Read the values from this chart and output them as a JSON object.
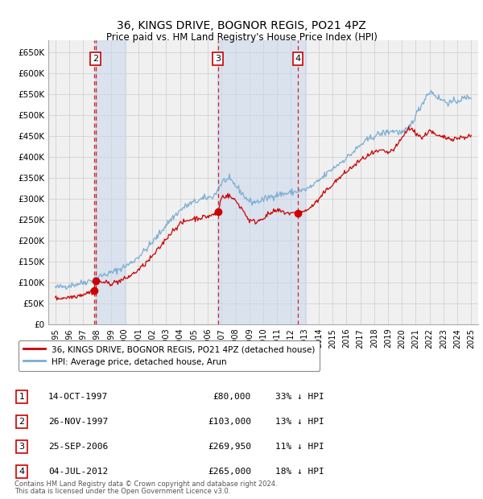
{
  "title": "36, KINGS DRIVE, BOGNOR REGIS, PO21 4PZ",
  "subtitle": "Price paid vs. HM Land Registry's House Price Index (HPI)",
  "legend_line1": "36, KINGS DRIVE, BOGNOR REGIS, PO21 4PZ (detached house)",
  "legend_line2": "HPI: Average price, detached house, Arun",
  "footer_line1": "Contains HM Land Registry data © Crown copyright and database right 2024.",
  "footer_line2": "This data is licensed under the Open Government Licence v3.0.",
  "sale_color": "#cc0000",
  "hpi_color": "#7aadd4",
  "transactions": [
    {
      "num": 1,
      "date": "14-OCT-1997",
      "price": 80000,
      "price_str": "£80,000",
      "pct": "33% ↓ HPI",
      "x_year": 1997.79
    },
    {
      "num": 2,
      "date": "26-NOV-1997",
      "price": 103000,
      "price_str": "£103,000",
      "pct": "13% ↓ HPI",
      "x_year": 1997.9
    },
    {
      "num": 3,
      "date": "25-SEP-2006",
      "price": 269950,
      "price_str": "£269,950",
      "pct": "11% ↓ HPI",
      "x_year": 2006.73
    },
    {
      "num": 4,
      "date": "04-JUL-2012",
      "price": 265000,
      "price_str": "£265,000",
      "pct": "18% ↓ HPI",
      "x_year": 2012.5
    }
  ],
  "label_boxes": [
    {
      "num": 2,
      "x_year": 1997.9
    },
    {
      "num": 3,
      "x_year": 2006.73
    },
    {
      "num": 4,
      "x_year": 2012.5
    }
  ],
  "ylim": [
    0,
    680000
  ],
  "xlim_start": 1994.5,
  "xlim_end": 2025.5,
  "yticks": [
    0,
    50000,
    100000,
    150000,
    200000,
    250000,
    300000,
    350000,
    400000,
    450000,
    500000,
    550000,
    600000,
    650000
  ],
  "ytick_labels": [
    "£0",
    "£50K",
    "£100K",
    "£150K",
    "£200K",
    "£250K",
    "£300K",
    "£350K",
    "£400K",
    "£450K",
    "£500K",
    "£550K",
    "£600K",
    "£650K"
  ],
  "xtick_years": [
    1995,
    1996,
    1997,
    1998,
    1999,
    2000,
    2001,
    2002,
    2003,
    2004,
    2005,
    2006,
    2007,
    2008,
    2009,
    2010,
    2011,
    2012,
    2013,
    2014,
    2015,
    2016,
    2017,
    2018,
    2019,
    2020,
    2021,
    2022,
    2023,
    2024,
    2025
  ],
  "background_color": "#f0f0f0",
  "grid_color": "#cccccc",
  "shade_color": "#c8d8ee",
  "shade_regions": [
    {
      "x_start": 1997.88,
      "x_end": 2000.1
    },
    {
      "x_start": 2006.7,
      "x_end": 2013.1
    }
  ],
  "hpi_data_x": [
    1995.0,
    1995.5,
    1996.0,
    1996.5,
    1997.0,
    1997.3,
    1997.6,
    1997.9,
    1998.2,
    1998.5,
    1999.0,
    1999.5,
    2000.0,
    2000.5,
    2001.0,
    2001.5,
    2002.0,
    2002.5,
    2003.0,
    2003.5,
    2004.0,
    2004.5,
    2005.0,
    2005.5,
    2006.0,
    2006.5,
    2007.0,
    2007.5,
    2008.0,
    2008.5,
    2009.0,
    2009.5,
    2010.0,
    2010.5,
    2011.0,
    2011.5,
    2012.0,
    2012.5,
    2013.0,
    2013.5,
    2014.0,
    2014.5,
    2015.0,
    2015.5,
    2016.0,
    2016.5,
    2017.0,
    2017.5,
    2018.0,
    2018.5,
    2019.0,
    2019.5,
    2020.0,
    2020.5,
    2021.0,
    2021.5,
    2022.0,
    2022.5,
    2023.0,
    2023.5,
    2024.0,
    2024.5,
    2025.0
  ],
  "hpi_data_y": [
    88000,
    90000,
    93000,
    96000,
    100000,
    103000,
    106000,
    110000,
    115000,
    118000,
    123000,
    130000,
    138000,
    148000,
    162000,
    178000,
    196000,
    216000,
    238000,
    256000,
    272000,
    284000,
    292000,
    298000,
    303000,
    310000,
    338000,
    345000,
    332000,
    312000,
    295000,
    293000,
    298000,
    305000,
    310000,
    312000,
    315000,
    318000,
    322000,
    330000,
    343000,
    358000,
    372000,
    385000,
    398000,
    412000,
    428000,
    440000,
    450000,
    456000,
    460000,
    462000,
    458000,
    470000,
    500000,
    530000,
    555000,
    545000,
    535000,
    530000,
    535000,
    540000,
    545000
  ],
  "prop_data_x": [
    1995.0,
    1995.5,
    1996.0,
    1996.5,
    1997.0,
    1997.3,
    1997.6,
    1997.79,
    1997.9,
    1998.2,
    1998.5,
    1999.0,
    1999.5,
    2000.0,
    2000.5,
    2001.0,
    2001.5,
    2002.0,
    2002.5,
    2003.0,
    2003.5,
    2004.0,
    2004.5,
    2005.0,
    2005.5,
    2006.0,
    2006.5,
    2006.73,
    2007.0,
    2007.5,
    2008.0,
    2008.5,
    2009.0,
    2009.5,
    2010.0,
    2010.5,
    2011.0,
    2011.5,
    2012.0,
    2012.5,
    2013.0,
    2013.5,
    2014.0,
    2014.5,
    2015.0,
    2015.5,
    2016.0,
    2016.5,
    2017.0,
    2017.5,
    2018.0,
    2018.5,
    2019.0,
    2019.5,
    2020.0,
    2020.5,
    2021.0,
    2021.5,
    2022.0,
    2022.5,
    2023.0,
    2023.5,
    2024.0,
    2024.5,
    2025.0
  ],
  "prop_data_y": [
    62000,
    63000,
    65000,
    68000,
    72000,
    75000,
    78000,
    80000,
    103000,
    103000,
    100000,
    98000,
    102000,
    108000,
    118000,
    130000,
    145000,
    162000,
    182000,
    205000,
    225000,
    240000,
    248000,
    253000,
    255000,
    258000,
    263000,
    269950,
    305000,
    308000,
    296000,
    275000,
    248000,
    245000,
    255000,
    265000,
    272000,
    268000,
    265000,
    265000,
    270000,
    282000,
    298000,
    318000,
    335000,
    350000,
    365000,
    378000,
    392000,
    402000,
    410000,
    415000,
    410000,
    420000,
    445000,
    470000,
    458000,
    445000,
    465000,
    450000,
    447000,
    445000,
    445000,
    448000,
    450000
  ]
}
